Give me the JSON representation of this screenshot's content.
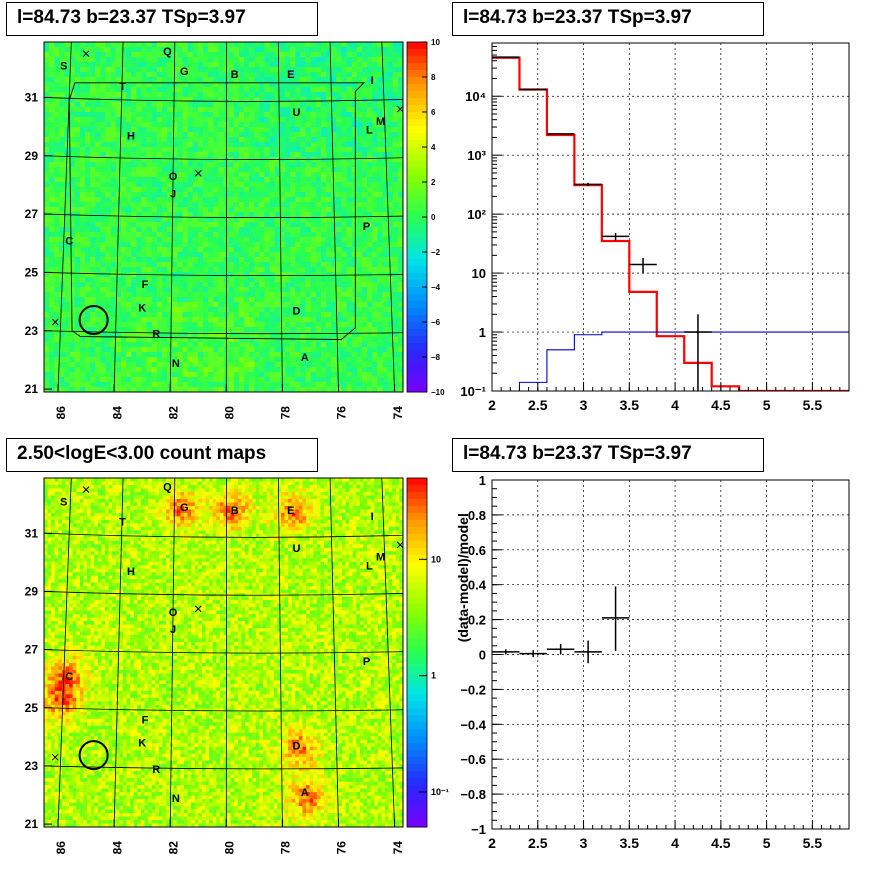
{
  "panels": {
    "skymap_ts": {
      "title": "l=84.73 b=23.37 TSp=3.97"
    },
    "spectrum": {
      "title": "l=84.73 b=23.37 TSp=3.97"
    },
    "skymap_counts": {
      "title": "2.50<logE<3.00 count maps"
    },
    "residual": {
      "title": "l=84.73 b=23.37 TSp=3.97"
    }
  },
  "chart_data": [
    {
      "type": "heatmap",
      "title": "l=84.73 b=23.37 TSp=3.97",
      "xlabel": "",
      "ylabel": "",
      "xlim": [
        86.5,
        73.7
      ],
      "ylim": [
        20.9,
        32.9
      ],
      "xticks": [
        "86",
        "84",
        "82",
        "80",
        "78",
        "76",
        "74"
      ],
      "yticks": [
        "21",
        "23",
        "25",
        "27",
        "29",
        "31"
      ],
      "colorbar": {
        "range": [
          -10,
          10
        ],
        "ticks": [
          "10",
          "8",
          "6",
          "4",
          "2",
          "0",
          "−2",
          "−4",
          "−6",
          "−8",
          "−10"
        ]
      },
      "source_labels": [
        {
          "label": "Q",
          "l": 82.1,
          "b": 32.6
        },
        {
          "label": "S",
          "l": 85.8,
          "b": 32.1
        },
        {
          "label": "G",
          "l": 81.5,
          "b": 31.9
        },
        {
          "label": "B",
          "l": 79.7,
          "b": 31.8
        },
        {
          "label": "E",
          "l": 77.7,
          "b": 31.8
        },
        {
          "label": "I",
          "l": 74.8,
          "b": 31.6
        },
        {
          "label": "T",
          "l": 83.7,
          "b": 31.4
        },
        {
          "label": "U",
          "l": 77.5,
          "b": 30.5
        },
        {
          "label": "M",
          "l": 74.5,
          "b": 30.2
        },
        {
          "label": "L",
          "l": 74.9,
          "b": 29.9
        },
        {
          "label": "H",
          "l": 83.4,
          "b": 29.7
        },
        {
          "label": "O",
          "l": 81.9,
          "b": 28.3
        },
        {
          "label": "J",
          "l": 81.9,
          "b": 27.7
        },
        {
          "label": "P",
          "l": 75.0,
          "b": 26.6
        },
        {
          "label": "C",
          "l": 85.6,
          "b": 26.1
        },
        {
          "label": "F",
          "l": 82.9,
          "b": 24.6
        },
        {
          "label": "K",
          "l": 83.0,
          "b": 23.8
        },
        {
          "label": "D",
          "l": 77.5,
          "b": 23.7
        },
        {
          "label": "R",
          "l": 82.5,
          "b": 22.9
        },
        {
          "label": "N",
          "l": 81.8,
          "b": 21.9
        },
        {
          "label": "A",
          "l": 77.2,
          "b": 22.1
        }
      ],
      "marker_circle": {
        "l": 84.73,
        "b": 23.37
      }
    },
    {
      "type": "line",
      "title": "l=84.73 b=23.37 TSp=3.97",
      "xlabel": "",
      "ylabel": "",
      "xlim": [
        2.0,
        5.9
      ],
      "ylim": [
        0.1,
        80000
      ],
      "yscale": "log",
      "xticks": [
        "2",
        "2.5",
        "3",
        "3.5",
        "4",
        "4.5",
        "5",
        "5.5"
      ],
      "yticks": [
        "10⁻¹",
        "1",
        "10",
        "10²",
        "10³",
        "10⁴"
      ],
      "grid": true,
      "series": [
        {
          "style": "model-total",
          "color": "#ff0000",
          "edges": [
            2.0,
            2.3,
            2.6,
            2.9,
            3.2,
            3.5,
            3.8,
            4.1,
            4.4,
            4.7,
            5.0,
            5.9
          ],
          "values": [
            45000,
            13000,
            2200,
            310,
            35,
            4.8,
            0.85,
            0.3,
            0.12,
            0.1,
            0.1
          ]
        },
        {
          "style": "model-source",
          "color": "#0000cc",
          "edges": [
            2.0,
            2.3,
            2.6,
            2.9,
            3.2,
            3.5,
            3.8,
            4.1,
            4.4,
            4.7,
            5.0,
            5.9
          ],
          "values": [
            0.09,
            0.14,
            0.5,
            0.9,
            1.0,
            1.0,
            1.0,
            1.0,
            1.0,
            1.0,
            1.0
          ]
        },
        {
          "style": "data-points",
          "color": "#000000",
          "points": [
            {
              "x": 2.15,
              "y": 46000,
              "xerr": 0.15,
              "ylo": 45500,
              "yhi": 46500
            },
            {
              "x": 2.45,
              "y": 13000,
              "xerr": 0.15,
              "ylo": 12800,
              "yhi": 13200
            },
            {
              "x": 2.75,
              "y": 2300,
              "xerr": 0.15,
              "ylo": 2250,
              "yhi": 2350
            },
            {
              "x": 3.05,
              "y": 320,
              "xerr": 0.15,
              "ylo": 300,
              "yhi": 340
            },
            {
              "x": 3.35,
              "y": 42,
              "xerr": 0.15,
              "ylo": 36,
              "yhi": 48
            },
            {
              "x": 3.65,
              "y": 14,
              "xerr": 0.15,
              "ylo": 10,
              "yhi": 18
            },
            {
              "x": 4.25,
              "y": 1.0,
              "xerr": 0.15,
              "ylo": 0.1,
              "yhi": 2.0
            }
          ]
        }
      ]
    },
    {
      "type": "heatmap",
      "title": "2.50<logE<3.00 count maps",
      "xlabel": "",
      "ylabel": "",
      "xlim": [
        86.5,
        73.7
      ],
      "ylim": [
        20.9,
        32.9
      ],
      "xticks": [
        "86",
        "84",
        "82",
        "80",
        "78",
        "76",
        "74"
      ],
      "yticks": [
        "21",
        "23",
        "25",
        "27",
        "29",
        "31"
      ],
      "colorbar": {
        "scale": "log",
        "range": [
          0.05,
          50
        ],
        "ticks": [
          "10",
          "1",
          "10⁻¹"
        ]
      },
      "hotspots": [
        {
          "l": 79.8,
          "b": 31.8
        },
        {
          "l": 77.6,
          "b": 31.7
        },
        {
          "l": 85.7,
          "b": 26.1
        },
        {
          "l": 85.9,
          "b": 25.2
        },
        {
          "l": 77.4,
          "b": 23.6
        },
        {
          "l": 77.1,
          "b": 21.9
        },
        {
          "l": 81.6,
          "b": 31.8
        }
      ],
      "marker_circle": {
        "l": 84.73,
        "b": 23.37
      }
    },
    {
      "type": "scatter",
      "title": "l=84.73 b=23.37 TSp=3.97",
      "xlabel": "",
      "ylabel": "(data-model)/model",
      "xlim": [
        2.0,
        5.9
      ],
      "ylim": [
        -1.0,
        1.0
      ],
      "xticks": [
        "2",
        "2.5",
        "3",
        "3.5",
        "4",
        "4.5",
        "5",
        "5.5"
      ],
      "yticks": [
        "−1",
        "−0.8",
        "−0.6",
        "−0.4",
        "−0.2",
        "0",
        "0.2",
        "0.4",
        "0.6",
        "0.8",
        "1"
      ],
      "grid": true,
      "points": [
        {
          "x": 2.15,
          "y": 0.015,
          "xerr": 0.15,
          "ylo": 0.0,
          "yhi": 0.03
        },
        {
          "x": 2.45,
          "y": 0.005,
          "xerr": 0.15,
          "ylo": -0.015,
          "yhi": 0.025
        },
        {
          "x": 2.75,
          "y": 0.03,
          "xerr": 0.15,
          "ylo": 0.0,
          "yhi": 0.06
        },
        {
          "x": 3.05,
          "y": 0.015,
          "xerr": 0.15,
          "ylo": -0.05,
          "yhi": 0.08
        },
        {
          "x": 3.35,
          "y": 0.21,
          "xerr": 0.15,
          "ylo": 0.02,
          "yhi": 0.39
        }
      ]
    }
  ]
}
